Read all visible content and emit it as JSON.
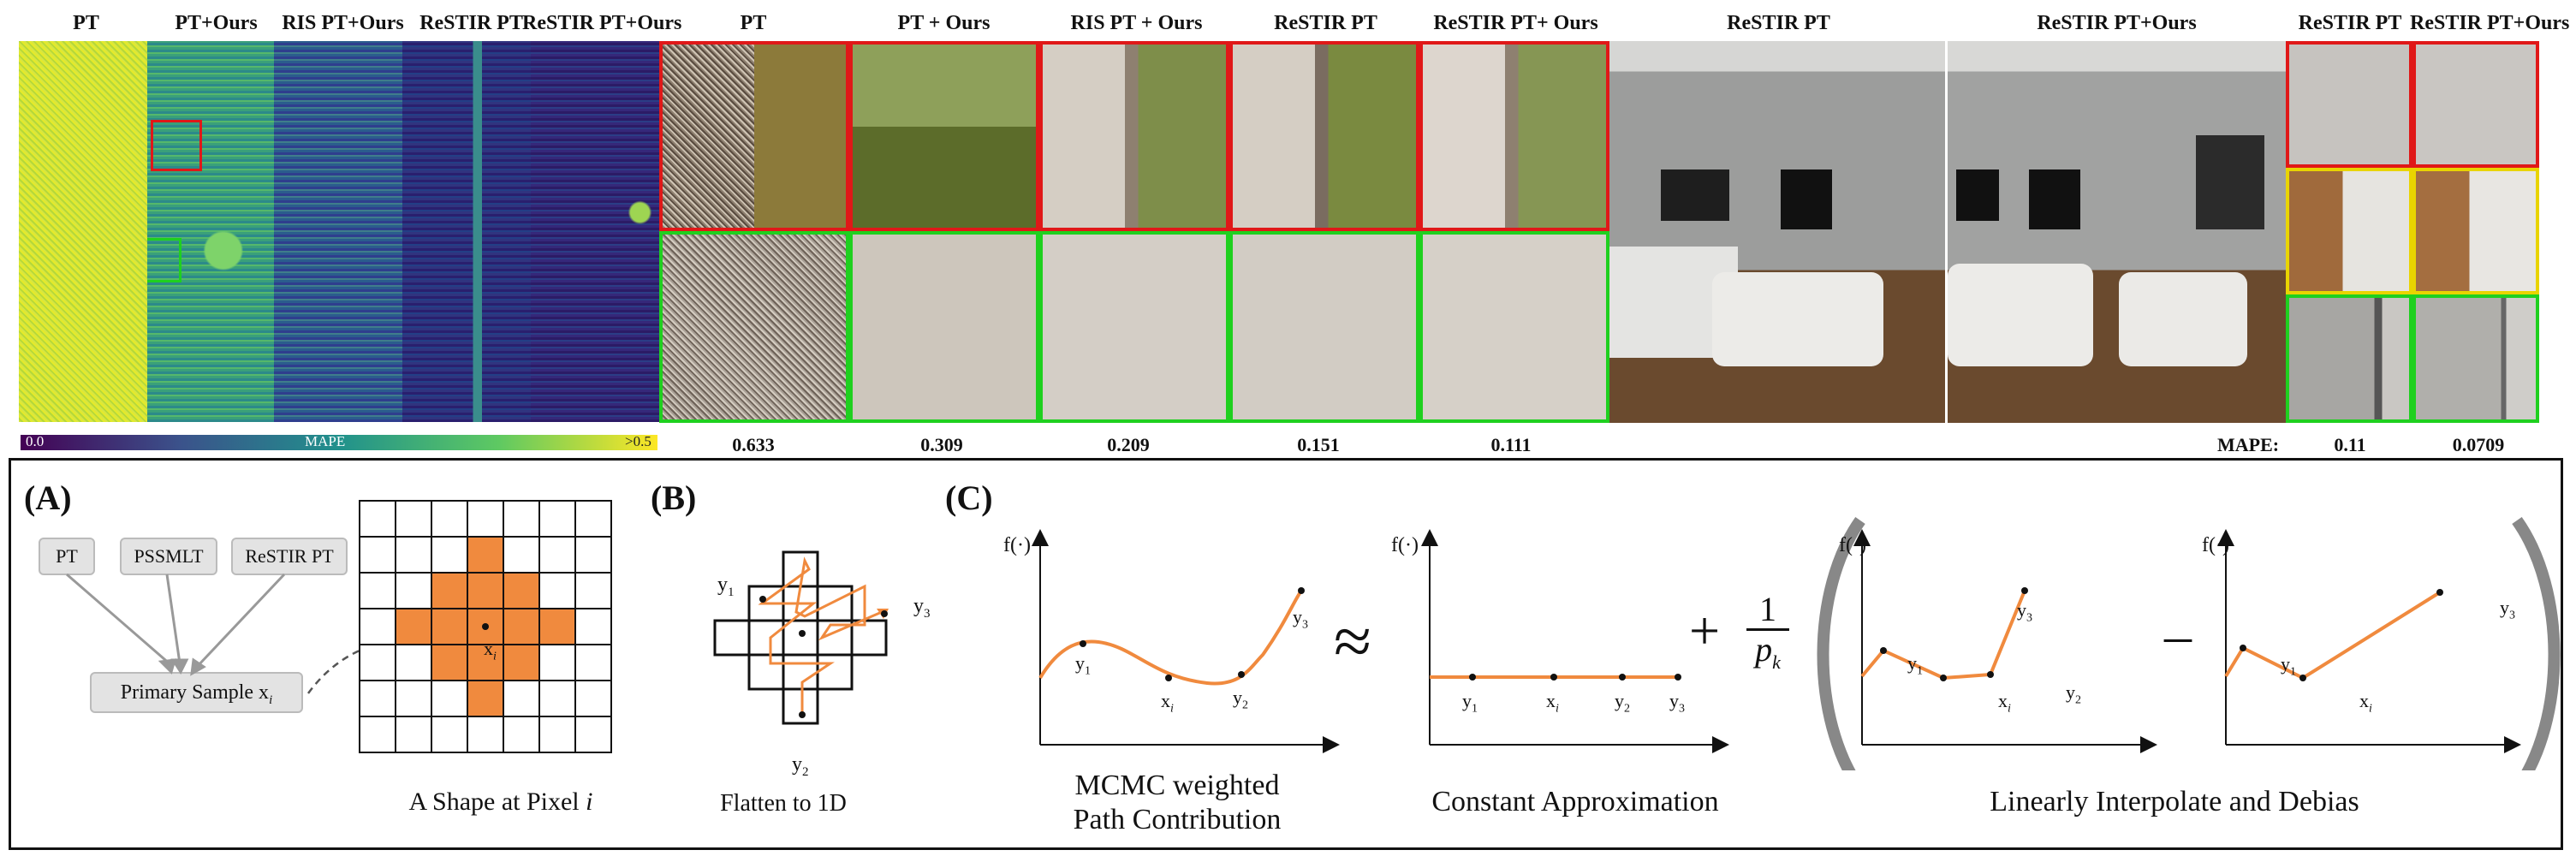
{
  "top": {
    "mape_headers": [
      "PT",
      "PT+Ours",
      "RIS PT+Ours",
      "ReSTIR PT",
      "ReSTIR PT+Ours"
    ],
    "crop_headers": [
      "PT",
      "PT + Ours",
      "RIS PT + Ours",
      "ReSTIR PT",
      "ReSTIR PT+ Ours"
    ],
    "scene_headers": [
      "ReSTIR PT",
      "ReSTIR PT+Ours"
    ],
    "right_crop_headers": [
      "ReSTIR PT",
      "ReSTIR PT+Ours"
    ],
    "colorbar": {
      "min": "0.0",
      "label": "MAPE",
      "max": ">0.5"
    },
    "crop_mape_values": [
      "0.633",
      "0.309",
      "0.209",
      "0.151",
      "0.111"
    ],
    "right_mape": {
      "label": "MAPE:",
      "values": [
        "0.11",
        "0.0709"
      ]
    }
  },
  "panel_a": {
    "label": "(A)",
    "sources": [
      "PT",
      "PSSMLT",
      "ReSTIR PT"
    ],
    "primary_sample": "Primary Sample x",
    "primary_sample_sub": "i",
    "grid_point": "x",
    "grid_point_sub": "i",
    "caption": "A Shape at Pixel ",
    "caption_var": "i"
  },
  "panel_b": {
    "label": "(B)",
    "y1": "y",
    "y1_sub": "1",
    "y2": "y",
    "y2_sub": "2",
    "y3": "y",
    "y3_sub": "3",
    "caption": "Flatten to 1D"
  },
  "panel_c": {
    "label": "(C)",
    "axis_label": "f(·)",
    "plot1_caption_line1": "MCMC weighted",
    "plot1_caption_line2": "Path Contribution",
    "approx_symbol": "≈",
    "plot2_caption": "Constant Approximation",
    "plus": "+",
    "frac_num": "1",
    "frac_den": "p",
    "frac_den_sub": "k",
    "minus": "–",
    "plot34_caption": "Linearly Interpolate and Debias",
    "points": {
      "y1": "y",
      "y1_sub": "1",
      "y2": "y",
      "y2_sub": "2",
      "y3": "y",
      "y3_sub": "3",
      "xi": "x",
      "xi_sub": "i"
    }
  },
  "colors": {
    "accent_orange": "#f08a3e",
    "red": "#e01818",
    "green": "#1fd01f",
    "yellow": "#e9d400"
  }
}
